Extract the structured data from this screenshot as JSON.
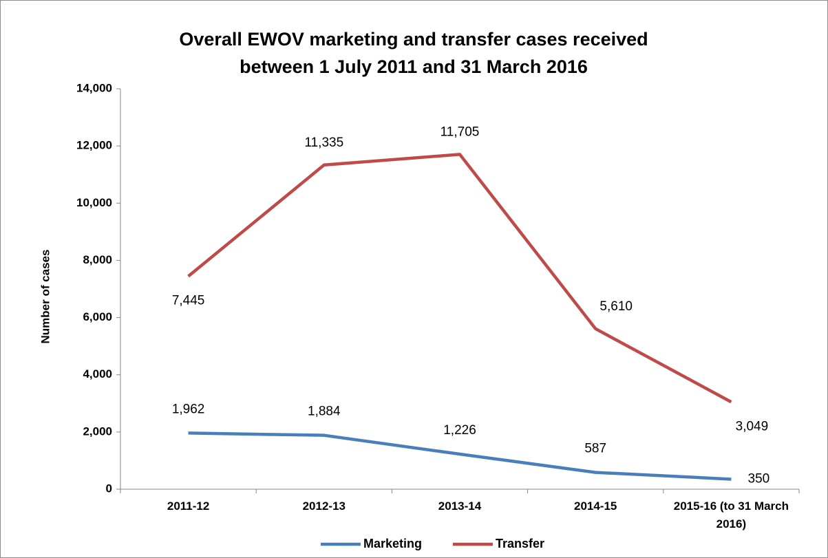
{
  "chart_data": {
    "type": "line",
    "title": "Overall EWOV marketing and transfer cases received between 1 July 2011 and 31 March 2016",
    "y_label": "Number of cases",
    "categories": [
      "2011-12",
      "2012-13",
      "2013-14",
      "2014-15",
      "2015-16 (to 31 March 2016)"
    ],
    "series": [
      {
        "name": "Marketing",
        "color": "#4a7ebb",
        "values": [
          1962,
          1884,
          1226,
          587,
          350
        ],
        "value_labels": [
          "1,962",
          "1,884",
          "1,226",
          "587",
          "350"
        ]
      },
      {
        "name": "Transfer",
        "color": "#be4b48",
        "values": [
          7445,
          11335,
          11705,
          5610,
          3049
        ],
        "value_labels": [
          "7,445",
          "11,335",
          "11,705",
          "5,610",
          "3,049"
        ]
      }
    ],
    "ylim": [
      0,
      14000
    ],
    "yticks": [
      0,
      {
        "value": 2000,
        "label": "2,000"
      },
      {
        "value": 4000,
        "label": "4,000"
      },
      {
        "value": 6000,
        "label": "6,000"
      },
      {
        "value": 8000,
        "label": "8,000"
      },
      {
        "value": 10000,
        "label": "10,000"
      },
      {
        "value": 12000,
        "label": "12,000"
      },
      {
        "value": 14000,
        "label": "14,000"
      }
    ],
    "grid": false,
    "legend": "bottom"
  }
}
